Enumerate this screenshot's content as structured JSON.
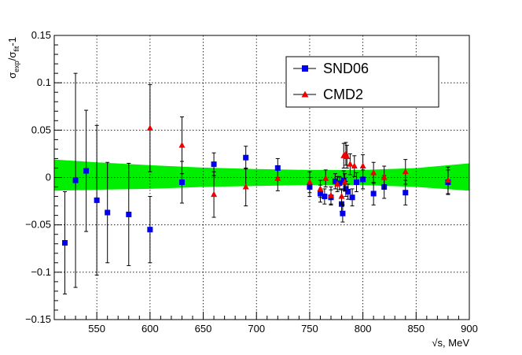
{
  "chart_data": {
    "type": "scatter",
    "xlabel": "√s, MeV",
    "ylabel_main": "σ",
    "ylabel_sub1": "exp",
    "ylabel_mid": "/σ",
    "ylabel_sub2": "fit",
    "ylabel_tail": "-1",
    "xlim": [
      510,
      900
    ],
    "ylim": [
      -0.15,
      0.15
    ],
    "x_ticks": [
      550,
      600,
      650,
      700,
      750,
      800,
      850,
      900
    ],
    "x_tick_labels": [
      "550",
      "600",
      "650",
      "700",
      "750",
      "800",
      "850",
      "900"
    ],
    "y_ticks": [
      -0.15,
      -0.1,
      -0.05,
      0,
      0.05,
      0.1,
      0.15
    ],
    "y_tick_labels": [
      "−0.15",
      "−0.1",
      "−0.05",
      "0",
      "0.05",
      "0.1",
      "0.15"
    ],
    "grid": true,
    "legend_position": "top-right",
    "band": {
      "name": "fit uncertainty",
      "color": "#00ee00",
      "x": [
        510,
        550,
        600,
        650,
        700,
        750,
        800,
        850,
        900
      ],
      "upper": [
        0.019,
        0.016,
        0.013,
        0.0105,
        0.009,
        0.008,
        0.008,
        0.01,
        0.015
      ],
      "lower": [
        -0.014,
        -0.013,
        -0.012,
        -0.01,
        -0.009,
        -0.008,
        -0.008,
        -0.01,
        -0.014
      ]
    },
    "series": [
      {
        "name": "SND06",
        "color": "#0000ee",
        "marker": "square",
        "points": [
          {
            "x": 520,
            "y": -0.069,
            "err": 0.054
          },
          {
            "x": 530,
            "y": -0.003,
            "err": 0.113
          },
          {
            "x": 540,
            "y": 0.007,
            "err": 0.064
          },
          {
            "x": 550,
            "y": -0.024,
            "err": 0.079
          },
          {
            "x": 560,
            "y": -0.037,
            "err": 0.053
          },
          {
            "x": 580,
            "y": -0.039,
            "err": 0.054
          },
          {
            "x": 600,
            "y": -0.055,
            "err": 0.035
          },
          {
            "x": 630,
            "y": -0.005,
            "err": 0.022
          },
          {
            "x": 660,
            "y": 0.014,
            "err": 0.012
          },
          {
            "x": 690,
            "y": 0.021,
            "err": 0.012
          },
          {
            "x": 720,
            "y": 0.01,
            "err": 0.01
          },
          {
            "x": 750,
            "y": -0.01,
            "err": 0.01
          },
          {
            "x": 760,
            "y": -0.017,
            "err": 0.009
          },
          {
            "x": 764,
            "y": -0.02,
            "err": 0.008
          },
          {
            "x": 770,
            "y": -0.021,
            "err": 0.008
          },
          {
            "x": 774,
            "y": -0.004,
            "err": 0.008
          },
          {
            "x": 778,
            "y": -0.006,
            "err": 0.007
          },
          {
            "x": 780,
            "y": -0.028,
            "err": 0.008
          },
          {
            "x": 781,
            "y": -0.038,
            "err": 0.009
          },
          {
            "x": 782,
            "y": -0.003,
            "err": 0.01
          },
          {
            "x": 784,
            "y": -0.012,
            "err": 0.008
          },
          {
            "x": 786,
            "y": -0.015,
            "err": 0.008
          },
          {
            "x": 790,
            "y": -0.021,
            "err": 0.009
          },
          {
            "x": 794,
            "y": -0.005,
            "err": 0.01
          },
          {
            "x": 800,
            "y": -0.002,
            "err": 0.01
          },
          {
            "x": 810,
            "y": -0.017,
            "err": 0.012
          },
          {
            "x": 820,
            "y": -0.01,
            "err": 0.012
          },
          {
            "x": 840,
            "y": -0.016,
            "err": 0.013
          },
          {
            "x": 880,
            "y": -0.005,
            "err": 0.013
          }
        ]
      },
      {
        "name": "CMD2",
        "color": "#ee0000",
        "marker": "triangle",
        "points": [
          {
            "x": 600,
            "y": 0.052,
            "err": 0.046
          },
          {
            "x": 630,
            "y": 0.034,
            "err": 0.03
          },
          {
            "x": 660,
            "y": -0.018,
            "err": 0.024
          },
          {
            "x": 690,
            "y": -0.01,
            "err": 0.02
          },
          {
            "x": 720,
            "y": -0.001,
            "err": 0.013
          },
          {
            "x": 750,
            "y": -0.005,
            "err": 0.011
          },
          {
            "x": 760,
            "y": -0.012,
            "err": 0.009
          },
          {
            "x": 765,
            "y": -0.001,
            "err": 0.009
          },
          {
            "x": 770,
            "y": -0.019,
            "err": 0.009
          },
          {
            "x": 776,
            "y": -0.007,
            "err": 0.008
          },
          {
            "x": 780,
            "y": -0.02,
            "err": 0.008
          },
          {
            "x": 782,
            "y": 0.023,
            "err": 0.013
          },
          {
            "x": 783,
            "y": -0.005,
            "err": 0.009
          },
          {
            "x": 784,
            "y": 0.025,
            "err": 0.012
          },
          {
            "x": 785,
            "y": 0.022,
            "err": 0.012
          },
          {
            "x": 788,
            "y": 0.014,
            "err": 0.011
          },
          {
            "x": 792,
            "y": 0.012,
            "err": 0.011
          },
          {
            "x": 800,
            "y": 0.012,
            "err": 0.012
          },
          {
            "x": 810,
            "y": 0.005,
            "err": 0.011
          },
          {
            "x": 820,
            "y": 0.0,
            "err": 0.012
          },
          {
            "x": 840,
            "y": 0.006,
            "err": 0.013
          },
          {
            "x": 880,
            "y": -0.003,
            "err": 0.014
          }
        ]
      }
    ]
  }
}
